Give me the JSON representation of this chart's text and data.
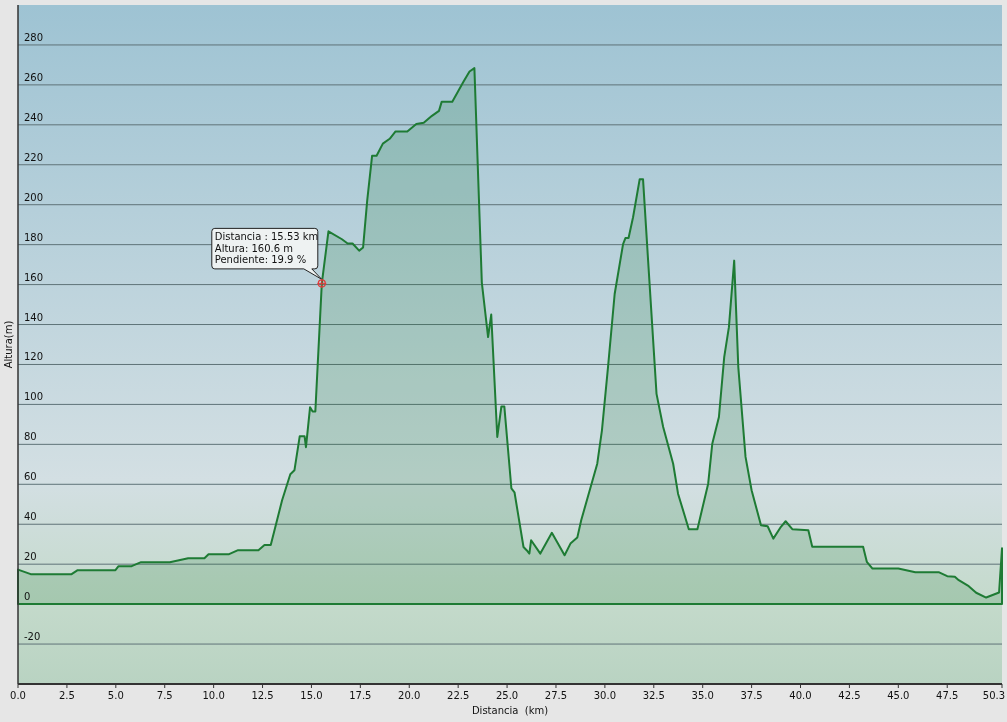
{
  "chart_data": {
    "type": "area",
    "xlabel": "Distancia  (km)",
    "ylabel": "Altura(m)",
    "x": [
      0,
      0.65,
      2.74,
      3.05,
      4.98,
      5.14,
      5.81,
      6.29,
      7.76,
      8.7,
      9.53,
      9.74,
      10.79,
      11.25,
      12.29,
      12.6,
      12.92,
      13.5,
      13.92,
      14.13,
      14.4,
      14.65,
      14.72,
      14.93,
      15.06,
      15.2,
      15.53,
      15.87,
      16.56,
      16.85,
      17.1,
      17.44,
      17.64,
      17.85,
      18.1,
      18.33,
      18.65,
      19.0,
      19.3,
      19.9,
      20.36,
      20.74,
      21.16,
      21.52,
      21.66,
      22.2,
      22.77,
      23.08,
      23.33,
      23.71,
      24.03,
      24.19,
      24.5,
      24.71,
      24.86,
      25.22,
      25.38,
      25.84,
      26.0,
      26.14,
      26.23,
      26.7,
      27.29,
      27.94,
      28.24,
      28.59,
      28.79,
      29.61,
      29.85,
      30.16,
      30.5,
      30.93,
      31.05,
      31.21,
      31.44,
      31.78,
      31.95,
      32.21,
      32.64,
      32.98,
      33.49,
      33.74,
      34.29,
      34.73,
      35.28,
      35.49,
      35.83,
      36.1,
      36.34,
      36.61,
      36.82,
      37.19,
      37.5,
      37.98,
      38.32,
      38.61,
      39.0,
      39.24,
      39.58,
      40.4,
      40.6,
      43.2,
      43.39,
      43.68,
      45.0,
      45.87,
      47.06,
      47.5,
      47.89,
      48.09,
      48.6,
      48.98,
      49.49,
      50.15,
      50.3
    ],
    "series": [
      {
        "color": "#1e7b34",
        "values": [
          17.3,
          15,
          15,
          17,
          17,
          19,
          19,
          21,
          21,
          23,
          23,
          25,
          25,
          27,
          27,
          29.6,
          29.6,
          52,
          65,
          67,
          84,
          84,
          78.6,
          98.6,
          96.5,
          96.5,
          160.6,
          186.7,
          182.7,
          180.6,
          180.6,
          177,
          178.6,
          202,
          224.5,
          224.5,
          230.6,
          233,
          236.7,
          236.7,
          240.4,
          241,
          244.5,
          247,
          251.6,
          251.6,
          261.6,
          266.7,
          268.4,
          161,
          133.7,
          145,
          83.7,
          99,
          99,
          58,
          56,
          28.6,
          27,
          25.3,
          32,
          25.3,
          35.7,
          24.5,
          30.3,
          33.3,
          42,
          70.3,
          87,
          118.7,
          155.3,
          180.3,
          183.3,
          183.3,
          193.7,
          212.8,
          212.8,
          172,
          105.3,
          88.7,
          70.3,
          55.3,
          37.5,
          37.5,
          60.3,
          80.3,
          93.7,
          123.7,
          138.7,
          172,
          118.7,
          73.7,
          57,
          39.5,
          39,
          32.8,
          38.7,
          41.5,
          37.5,
          37,
          28.7,
          28.7,
          21.2,
          17.8,
          17.8,
          16,
          16,
          14,
          13.7,
          12,
          9,
          5.7,
          3.3,
          5.8,
          28
        ]
      }
    ],
    "xlim": [
      0,
      50.3
    ],
    "xticks": [
      {
        "value": 0,
        "label": "0.0"
      },
      2.5,
      {
        "value": 5,
        "label": "5.0"
      },
      7.5,
      {
        "value": 10,
        "label": "10.0"
      },
      12.5,
      {
        "value": 15,
        "label": "15.0"
      },
      17.5,
      {
        "value": 20,
        "label": "20.0"
      },
      22.5,
      {
        "value": 25,
        "label": "25.0"
      },
      27.5,
      {
        "value": 30,
        "label": "30.0"
      },
      32.5,
      {
        "value": 35,
        "label": "35.0"
      },
      37.5,
      {
        "value": 40,
        "label": "40.0"
      },
      42.5,
      {
        "value": 45,
        "label": "45.0"
      },
      47.5,
      50.3
    ],
    "ylim": [
      -40,
      300
    ],
    "yticks": [
      -20,
      0,
      20,
      40,
      60,
      80,
      100,
      120,
      140,
      160,
      180,
      200,
      220,
      240,
      260,
      280
    ],
    "grid": "y",
    "marker": "none",
    "line_style": "solid",
    "legend": false,
    "annotations": [
      {
        "text": "Distancia : 15.53 km\nAltura: 160.6 m\nPendiente: 19.9 %",
        "x": 15.53,
        "y": 160.6
      }
    ]
  }
}
